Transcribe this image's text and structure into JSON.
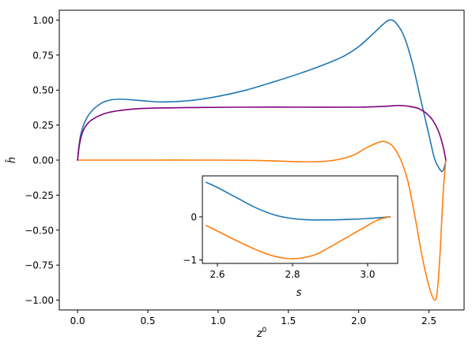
{
  "chart_data": [
    {
      "type": "line",
      "title": "",
      "xlabel": "z",
      "xlabel_sup": "0",
      "ylabel": "ĥ",
      "xlim": [
        -0.13,
        2.75
      ],
      "ylim": [
        -1.07,
        1.07
      ],
      "xticks": [
        0.0,
        0.5,
        1.0,
        1.5,
        2.0,
        2.5
      ],
      "xtick_labels": [
        "0.0",
        "0.5",
        "1.0",
        "1.5",
        "2.0",
        "2.5"
      ],
      "yticks": [
        -1.0,
        -0.75,
        -0.5,
        -0.25,
        0.0,
        0.25,
        0.5,
        0.75,
        1.0
      ],
      "ytick_labels": [
        "−1.00",
        "−0.75",
        "−0.50",
        "−0.25",
        "0.00",
        "0.25",
        "0.50",
        "0.75",
        "1.00"
      ],
      "grid": false,
      "legend": "none",
      "series": [
        {
          "color": "#1f77b4",
          "points": [
            [
              0.0,
              0.0
            ],
            [
              0.02,
              0.17
            ],
            [
              0.06,
              0.29
            ],
            [
              0.12,
              0.37
            ],
            [
              0.2,
              0.42
            ],
            [
              0.3,
              0.435
            ],
            [
              0.45,
              0.425
            ],
            [
              0.6,
              0.415
            ],
            [
              0.8,
              0.425
            ],
            [
              1.0,
              0.455
            ],
            [
              1.2,
              0.5
            ],
            [
              1.4,
              0.56
            ],
            [
              1.6,
              0.625
            ],
            [
              1.8,
              0.7
            ],
            [
              1.9,
              0.745
            ],
            [
              2.0,
              0.81
            ],
            [
              2.1,
              0.9
            ],
            [
              2.18,
              0.975
            ],
            [
              2.22,
              1.0
            ],
            [
              2.26,
              0.985
            ],
            [
              2.32,
              0.89
            ],
            [
              2.38,
              0.7
            ],
            [
              2.44,
              0.44
            ],
            [
              2.5,
              0.18
            ],
            [
              2.54,
              0.01
            ],
            [
              2.58,
              -0.07
            ],
            [
              2.6,
              -0.075
            ],
            [
              2.62,
              -0.01
            ]
          ]
        },
        {
          "color": "#ff7f0e",
          "points": [
            [
              0.0,
              0.0
            ],
            [
              0.5,
              0.0
            ],
            [
              1.0,
              0.0
            ],
            [
              1.3,
              -0.003
            ],
            [
              1.6,
              -0.012
            ],
            [
              1.8,
              -0.005
            ],
            [
              1.95,
              0.03
            ],
            [
              2.05,
              0.085
            ],
            [
              2.15,
              0.13
            ],
            [
              2.2,
              0.128
            ],
            [
              2.25,
              0.09
            ],
            [
              2.3,
              0.0
            ],
            [
              2.35,
              -0.15
            ],
            [
              2.4,
              -0.4
            ],
            [
              2.45,
              -0.68
            ],
            [
              2.5,
              -0.9
            ],
            [
              2.54,
              -1.0
            ],
            [
              2.56,
              -0.93
            ],
            [
              2.58,
              -0.65
            ],
            [
              2.6,
              -0.25
            ],
            [
              2.62,
              0.0
            ]
          ]
        },
        {
          "color": "#800080",
          "points": [
            [
              0.0,
              0.0
            ],
            [
              0.015,
              0.12
            ],
            [
              0.04,
              0.21
            ],
            [
              0.08,
              0.27
            ],
            [
              0.14,
              0.31
            ],
            [
              0.22,
              0.34
            ],
            [
              0.35,
              0.36
            ],
            [
              0.5,
              0.37
            ],
            [
              0.8,
              0.375
            ],
            [
              1.2,
              0.378
            ],
            [
              1.6,
              0.378
            ],
            [
              2.0,
              0.378
            ],
            [
              2.2,
              0.385
            ],
            [
              2.28,
              0.39
            ],
            [
              2.35,
              0.385
            ],
            [
              2.42,
              0.37
            ],
            [
              2.48,
              0.335
            ],
            [
              2.53,
              0.28
            ],
            [
              2.57,
              0.2
            ],
            [
              2.6,
              0.1
            ],
            [
              2.62,
              0.0
            ]
          ]
        }
      ]
    },
    {
      "type": "line",
      "title": "",
      "xlabel": "s",
      "ylabel": "",
      "xlim": [
        2.56,
        3.08
      ],
      "ylim": [
        -1.08,
        0.95
      ],
      "xticks": [
        2.6,
        2.8,
        3.0
      ],
      "xtick_labels": [
        "2.6",
        "2.8",
        "3.0"
      ],
      "yticks": [
        -1,
        0
      ],
      "ytick_labels": [
        "−1",
        "0"
      ],
      "grid": false,
      "legend": "none",
      "series": [
        {
          "color": "#1f77b4",
          "points": [
            [
              2.57,
              0.8
            ],
            [
              2.6,
              0.68
            ],
            [
              2.65,
              0.45
            ],
            [
              2.7,
              0.22
            ],
            [
              2.75,
              0.05
            ],
            [
              2.8,
              -0.04
            ],
            [
              2.85,
              -0.07
            ],
            [
              2.9,
              -0.07
            ],
            [
              2.95,
              -0.06
            ],
            [
              3.0,
              -0.04
            ],
            [
              3.03,
              -0.02
            ],
            [
              3.06,
              0.0
            ]
          ]
        },
        {
          "color": "#ff7f0e",
          "points": [
            [
              2.57,
              -0.2
            ],
            [
              2.6,
              -0.33
            ],
            [
              2.65,
              -0.55
            ],
            [
              2.7,
              -0.75
            ],
            [
              2.75,
              -0.91
            ],
            [
              2.79,
              -0.97
            ],
            [
              2.82,
              -0.96
            ],
            [
              2.86,
              -0.88
            ],
            [
              2.9,
              -0.7
            ],
            [
              2.95,
              -0.45
            ],
            [
              3.0,
              -0.2
            ],
            [
              3.03,
              -0.06
            ],
            [
              3.06,
              0.0
            ]
          ]
        }
      ]
    }
  ]
}
